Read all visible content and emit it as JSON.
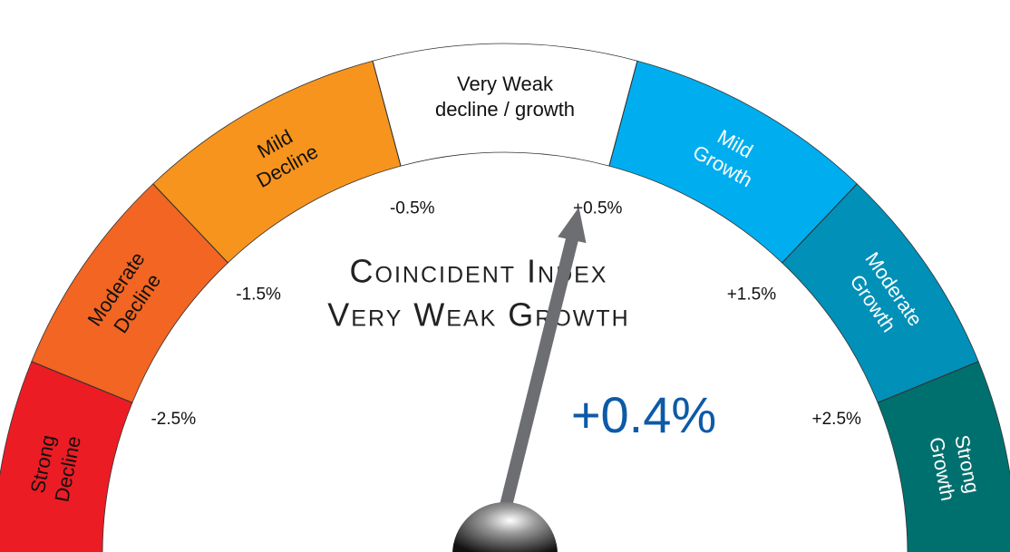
{
  "chart_data": {
    "type": "gauge",
    "title": [
      "Coincident Index",
      "Very Weak Growth"
    ],
    "ylim": [
      -3.5,
      3.5
    ],
    "yticks": [
      {
        "value": -2.5,
        "label": "-2.5%"
      },
      {
        "value": -1.5,
        "label": "-1.5%"
      },
      {
        "value": -0.5,
        "label": "-0.5%"
      },
      {
        "value": 0.5,
        "label": "+0.5%"
      },
      {
        "value": 1.5,
        "label": "+1.5%"
      },
      {
        "value": 2.5,
        "label": "+2.5%"
      }
    ],
    "segments": [
      {
        "label": [
          "Strong",
          "Decline"
        ],
        "color": "#ec1c24"
      },
      {
        "label": [
          "Moderate",
          "Decline"
        ],
        "color": "#f26522"
      },
      {
        "label": [
          "Mild",
          "Decline"
        ],
        "color": "#f7941d"
      },
      {
        "label": [
          "Very Weak",
          "decline / growth"
        ],
        "color": "#ffffff"
      },
      {
        "label": [
          "Mild",
          "Growth"
        ],
        "color": "#00aeef"
      },
      {
        "label": [
          "Moderate",
          "Growth"
        ],
        "color": "#0090b8"
      },
      {
        "label": [
          "Strong",
          "Growth"
        ],
        "color": "#00706e"
      }
    ],
    "value": 0.4,
    "value_label": "+0.4%",
    "needle_color": "#6d6e71"
  }
}
